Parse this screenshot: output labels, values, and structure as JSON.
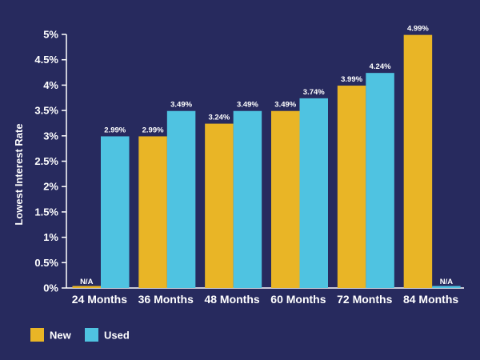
{
  "chart_data": {
    "type": "bar",
    "title": "",
    "xlabel": "",
    "ylabel": "Lowest Interest Rate",
    "ylim": [
      0,
      5
    ],
    "y_ticks": [
      "0%",
      "0.5%",
      "1%",
      "1.5%",
      "2%",
      "2.5%",
      "3%",
      "3.5%",
      "4%",
      "4.5%",
      "5%"
    ],
    "categories": [
      "24 Months",
      "36 Months",
      "48 Months",
      "60 Months",
      "72 Months",
      "84 Months"
    ],
    "series": [
      {
        "name": "New",
        "color": "#e9b526",
        "values": [
          null,
          2.99,
          3.24,
          3.49,
          3.99,
          4.99
        ],
        "labels": [
          "N/A",
          "2.99%",
          "3.24%",
          "3.49%",
          "3.99%",
          "4.99%"
        ]
      },
      {
        "name": "Used",
        "color": "#4fc3e1",
        "values": [
          2.99,
          3.49,
          3.49,
          3.74,
          4.24,
          null
        ],
        "labels": [
          "2.99%",
          "3.49%",
          "3.49%",
          "3.74%",
          "4.24%",
          "N/A"
        ]
      }
    ],
    "grid": false,
    "legend": "bottom-left"
  }
}
